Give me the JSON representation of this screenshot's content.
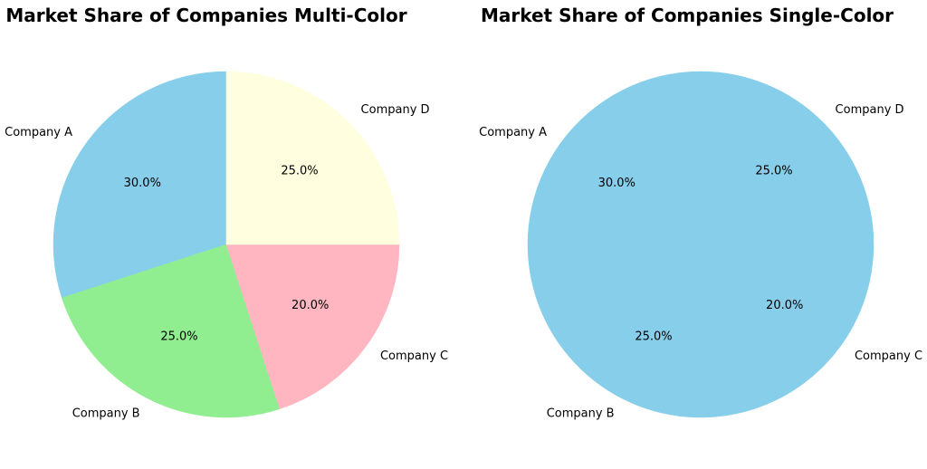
{
  "chart_data": [
    {
      "type": "pie",
      "title": "Market Share of Companies Multi-Color",
      "categories": [
        "Company A",
        "Company B",
        "Company C",
        "Company D"
      ],
      "values": [
        30,
        25,
        20,
        25
      ],
      "value_labels": [
        "30.0%",
        "25.0%",
        "20.0%",
        "25.0%"
      ],
      "colors": [
        "#87CEEB",
        "#90EE90",
        "#FFB6C1",
        "#FFFFE0"
      ],
      "start_angle_deg": 90,
      "direction": "counterclockwise"
    },
    {
      "type": "pie",
      "title": "Market Share of Companies Single-Color",
      "categories": [
        "Company A",
        "Company B",
        "Company C",
        "Company D"
      ],
      "values": [
        30,
        25,
        20,
        25
      ],
      "value_labels": [
        "30.0%",
        "25.0%",
        "20.0%",
        "25.0%"
      ],
      "colors": [
        "#87CEEB",
        "#87CEEB",
        "#87CEEB",
        "#87CEEB"
      ],
      "start_angle_deg": 90,
      "direction": "counterclockwise"
    }
  ]
}
